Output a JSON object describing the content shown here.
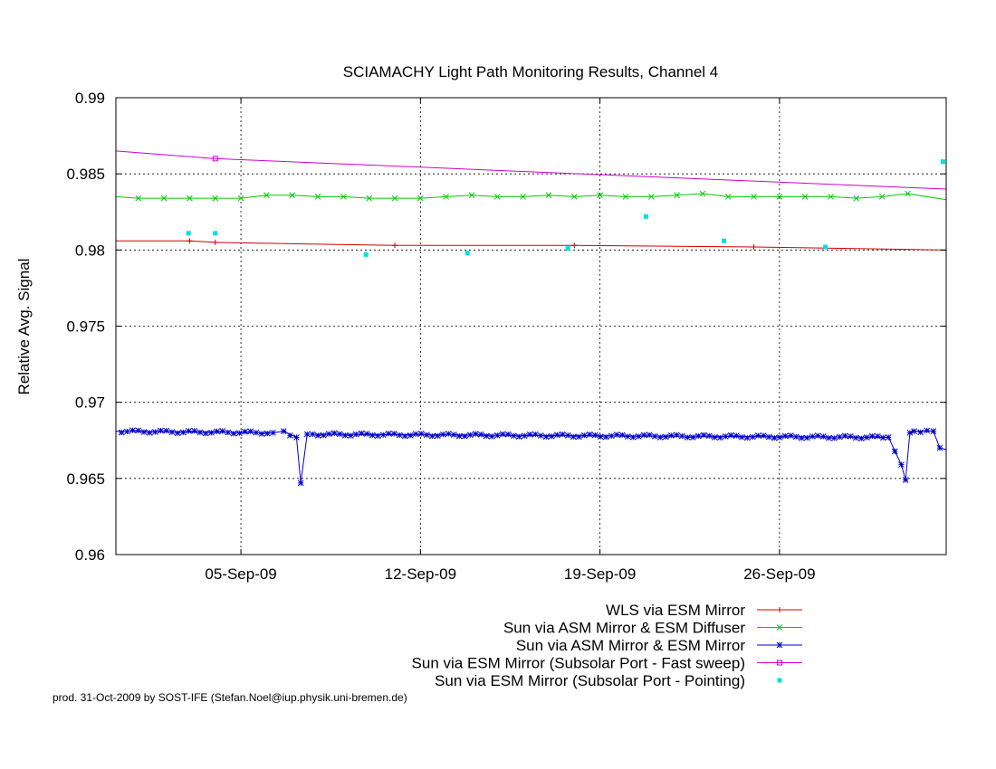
{
  "footer": "prod. 31-Oct-2009 by SOST-IFE (Stefan.Noel@iup.physik.uni-bremen.de)",
  "chart_data": {
    "type": "line",
    "title": "SCIAMACHY Light Path Monitoring Results, Channel 4",
    "xlabel": "",
    "ylabel": "Relative Avg. Signal",
    "x_unit": "date (day of 2009, fractional)",
    "xlim": [
      "2009-08-31T03:00",
      "2009-10-02T12:00"
    ],
    "ylim": [
      0.96,
      0.99
    ],
    "y_ticks": [
      0.96,
      0.965,
      0.97,
      0.975,
      0.98,
      0.985,
      0.99
    ],
    "y_tick_labels": [
      "0.96",
      "0.965",
      "0.97",
      "0.975",
      "0.98",
      "0.985",
      "0.99"
    ],
    "x_ticks": [
      "2009-09-05",
      "2009-09-12",
      "2009-09-19",
      "2009-09-26"
    ],
    "x_tick_labels": [
      "05-Sep-09",
      "12-Sep-09",
      "19-Sep-09",
      "26-Sep-09"
    ],
    "grid": true,
    "legend_position": "bottom-right below plot",
    "series": [
      {
        "name": "WLS via ESM Mirror",
        "color": "#cc0000",
        "marker": "plus",
        "style": "line",
        "x": [
          "2009-08-31T03:00",
          "2009-09-03T00:00",
          "2009-09-04T00:00",
          "2009-09-11T00:00",
          "2009-09-18T00:00",
          "2009-09-25T00:00",
          "2009-10-02T12:00"
        ],
        "y": [
          0.9806,
          0.9806,
          0.9805,
          0.9803,
          0.9803,
          0.9802,
          0.98
        ]
      },
      {
        "name": "Sun via ASM Mirror & ESM Diffuser",
        "color": "#00cc00",
        "marker": "x",
        "style": "line",
        "x": [
          "2009-08-31T03:00",
          "2009-09-01T00:00",
          "2009-09-02T00:00",
          "2009-09-03T00:00",
          "2009-09-04T00:00",
          "2009-09-05T00:00",
          "2009-09-06T00:00",
          "2009-09-07T00:00",
          "2009-09-08T00:00",
          "2009-09-09T00:00",
          "2009-09-10T00:00",
          "2009-09-11T00:00",
          "2009-09-12T00:00",
          "2009-09-13T00:00",
          "2009-09-14T00:00",
          "2009-09-15T00:00",
          "2009-09-16T00:00",
          "2009-09-17T00:00",
          "2009-09-18T00:00",
          "2009-09-19T00:00",
          "2009-09-20T00:00",
          "2009-09-21T00:00",
          "2009-09-22T00:00",
          "2009-09-23T00:00",
          "2009-09-24T00:00",
          "2009-09-25T00:00",
          "2009-09-26T00:00",
          "2009-09-27T00:00",
          "2009-09-28T00:00",
          "2009-09-29T00:00",
          "2009-09-30T00:00",
          "2009-10-01T00:00",
          "2009-10-02T12:00"
        ],
        "y": [
          0.9835,
          0.9834,
          0.9834,
          0.9834,
          0.9834,
          0.9834,
          0.9836,
          0.9836,
          0.9835,
          0.9835,
          0.9834,
          0.9834,
          0.9834,
          0.9835,
          0.9836,
          0.9835,
          0.9835,
          0.9836,
          0.9835,
          0.9836,
          0.9835,
          0.9835,
          0.9836,
          0.9837,
          0.9835,
          0.9835,
          0.9835,
          0.9835,
          0.9835,
          0.9834,
          0.9835,
          0.9837,
          0.9833
        ]
      },
      {
        "name": "Sun via ASM Mirror & ESM Mirror",
        "color": "#0000cc",
        "marker": "star",
        "style": "line",
        "x": [
          "2009-08-31T03:00",
          "2009-09-06T06:00",
          "2009-09-06T16:00",
          "2009-09-07T04:00",
          "2009-09-07T08:00",
          "2009-09-07T14:00",
          "2009-09-30T06:00",
          "2009-09-30T18:00",
          "2009-09-30T22:00",
          "2009-10-01T02:00",
          "2009-10-01T06:00",
          "2009-10-02T00:00",
          "2009-10-02T06:00",
          "2009-10-02T12:00"
        ],
        "y": [
          0.9681,
          0.968,
          0.9681,
          0.9677,
          0.9647,
          0.9679,
          0.9677,
          0.9659,
          0.9649,
          0.968,
          0.9681,
          0.9681,
          0.967,
          0.9669
        ]
      },
      {
        "name": "Sun via ESM Mirror (Subsolar Port - Fast sweep)",
        "color": "#cc00cc",
        "marker": "square",
        "style": "line",
        "x": [
          "2009-08-31T03:00",
          "2009-09-04T00:00",
          "2009-10-02T12:00"
        ],
        "y": [
          0.9865,
          0.986,
          0.984
        ]
      },
      {
        "name": "Sun via ESM Mirror (Subsolar Port - Pointing)",
        "color": "#00e0e0",
        "marker": "filled-square",
        "style": "points",
        "x": [
          "2009-09-02T23:00",
          "2009-09-04T00:00",
          "2009-09-09T21:00",
          "2009-09-13T20:00",
          "2009-09-17T18:00",
          "2009-09-20T19:00",
          "2009-09-23T20:00",
          "2009-09-27T19:00",
          "2009-10-02T09:00"
        ],
        "y": [
          0.9811,
          0.9811,
          0.9797,
          0.9798,
          0.9801,
          0.9822,
          0.9806,
          0.9802,
          0.9858
        ]
      }
    ]
  }
}
